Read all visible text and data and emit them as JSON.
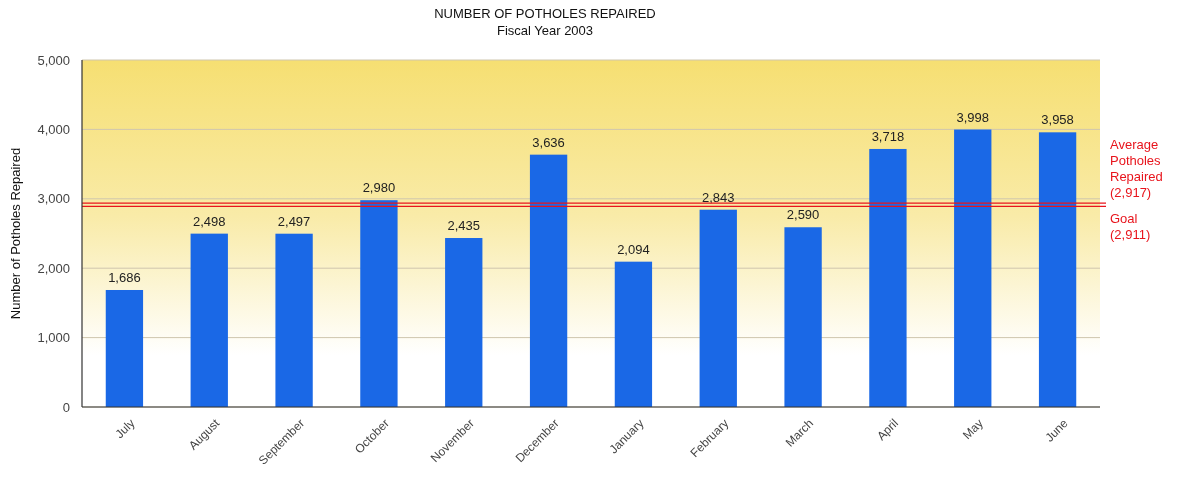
{
  "chart_data": {
    "type": "bar",
    "title": "NUMBER OF POTHOLES REPAIRED",
    "subtitle": "Fiscal Year 2003",
    "ylabel": "Number of Potholes Repaired",
    "categories": [
      "July",
      "August",
      "September",
      "October",
      "November",
      "December",
      "January",
      "February",
      "March",
      "April",
      "May",
      "June"
    ],
    "values": [
      1686,
      2498,
      2497,
      2980,
      2435,
      3636,
      2094,
      2843,
      2590,
      3718,
      3998,
      3958
    ],
    "value_labels": [
      "1,686",
      "2,498",
      "2,497",
      "2,980",
      "2,435",
      "3,636",
      "2,094",
      "2,843",
      "2,590",
      "3,718",
      "3,998",
      "3,958"
    ],
    "color": "#1a68e6",
    "ylim": [
      0,
      5000
    ],
    "yticks": [
      0,
      {
        "value": 1000,
        "label": "1,000"
      },
      {
        "value": 2000,
        "label": "2,000"
      },
      {
        "value": 3000,
        "label": "3,000"
      },
      {
        "value": 4000,
        "label": "4,000"
      },
      {
        "value": 5000,
        "label": "5,000"
      }
    ],
    "grid": "y",
    "ref_lines": [
      {
        "axis": "y",
        "value": 2917,
        "label": "Average Potholes Repaired (2,917)",
        "color": "#e8141c"
      },
      {
        "axis": "y",
        "value": 2911,
        "label": "Goal (2,911)",
        "color": "#e8141c"
      }
    ]
  }
}
